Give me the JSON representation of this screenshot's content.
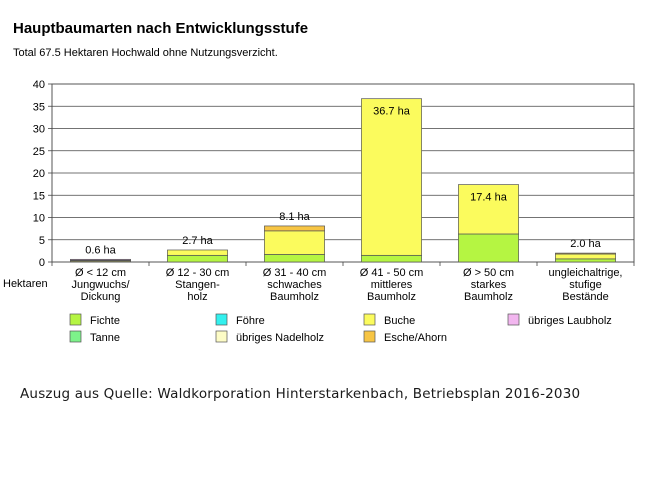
{
  "title": "Hauptbaumarten nach Entwicklungsstufe",
  "subtitle": "Total 67.5 Hektaren Hochwald ohne Nutzungsverzicht.",
  "source": "Auszug aus Quelle: Waldkorporation Hinterstarkenbach, Betriebsplan 2016-2030",
  "colors": {
    "Fichte": "#b5f542",
    "Tanne": "#7df28a",
    "Föhre": "#33f0ee",
    "übriges Nadelholz": "#fdfcc6",
    "Buche": "#fbfb5d",
    "Esche/Ahorn": "#f7c544",
    "übriges Laubholz": "#f2b6ef"
  },
  "chart_data": {
    "type": "bar",
    "stacked": true,
    "ylabel": "Hektaren",
    "ylim": [
      0,
      40
    ],
    "yticks": [
      0,
      5,
      10,
      15,
      20,
      25,
      30,
      35,
      40
    ],
    "grid": true,
    "legend_position": "bottom",
    "categories": [
      [
        "Ø < 12 cm",
        "Jungwuchs/",
        "Dickung"
      ],
      [
        "Ø 12 - 30 cm",
        "Stangen-",
        "holz"
      ],
      [
        "Ø 31 - 40 cm",
        "schwaches",
        "Baumholz"
      ],
      [
        "Ø 41 - 50 cm",
        "mittleres",
        "Baumholz"
      ],
      [
        "Ø > 50 cm",
        "starkes",
        "Baumholz"
      ],
      [
        "ungleichaltrige,",
        "stufige",
        "Bestände"
      ]
    ],
    "totals_labels": [
      "0.6 ha",
      "2.7 ha",
      "8.1 ha",
      "36.7 ha",
      "17.4 ha",
      "2.0 ha"
    ],
    "series": [
      {
        "name": "Fichte",
        "values": [
          0.1,
          1.5,
          1.7,
          1.5,
          6.3,
          0.7
        ]
      },
      {
        "name": "Tanne",
        "values": [
          0,
          0,
          0,
          0,
          0,
          0
        ]
      },
      {
        "name": "Föhre",
        "values": [
          0,
          0,
          0,
          0,
          0,
          0
        ]
      },
      {
        "name": "übriges Nadelholz",
        "values": [
          0,
          0,
          0,
          0,
          0,
          0
        ]
      },
      {
        "name": "Buche",
        "values": [
          0.2,
          1.2,
          5.3,
          35.2,
          11.1,
          1.1
        ]
      },
      {
        "name": "Esche/Ahorn",
        "values": [
          0.1,
          0,
          1.1,
          0,
          0,
          0.2
        ]
      },
      {
        "name": "übriges Laubholz",
        "values": [
          0.2,
          0,
          0,
          0,
          0,
          0
        ]
      }
    ],
    "legend": [
      [
        "Fichte",
        "Föhre",
        "Buche",
        "übriges Laubholz"
      ],
      [
        "Tanne",
        "übriges Nadelholz",
        "Esche/Ahorn"
      ]
    ]
  }
}
